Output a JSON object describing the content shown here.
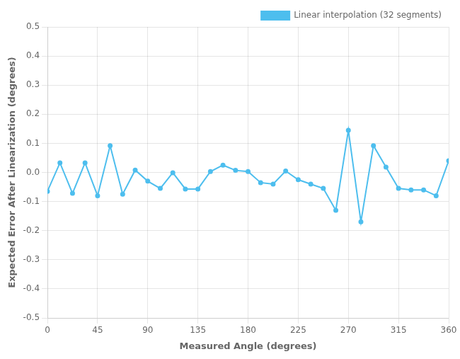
{
  "chart_data": {
    "type": "line",
    "x_label": "Measured Angle (degrees)",
    "y_label": "Expected Error After Linearization (degrees)",
    "x": [
      0,
      11.25,
      22.5,
      33.75,
      45,
      56.25,
      67.5,
      78.75,
      90,
      101.25,
      112.5,
      123.75,
      135,
      146.25,
      157.5,
      168.75,
      180,
      191.25,
      202.5,
      213.75,
      225,
      236.25,
      247.5,
      258.75,
      270,
      281.25,
      292.5,
      303.75,
      315,
      326.25,
      337.5,
      348.75,
      360
    ],
    "series": [
      {
        "name": "Linear interpolation (32 segments)",
        "color": "#4DBEEE",
        "marker": "point",
        "line_style": "solid",
        "values": [
          -0.065,
          0.033,
          -0.072,
          0.033,
          -0.08,
          0.092,
          -0.075,
          0.008,
          -0.03,
          -0.055,
          -0.001,
          -0.057,
          -0.057,
          0.003,
          0.025,
          0.007,
          0.003,
          -0.035,
          -0.04,
          0.005,
          -0.025,
          -0.04,
          -0.055,
          -0.13,
          0.145,
          -0.17,
          0.092,
          0.018,
          -0.055,
          -0.06,
          -0.06,
          -0.08,
          0.04
        ]
      }
    ],
    "xlim": [
      0,
      360
    ],
    "ylim": [
      -0.5,
      0.5
    ],
    "xticks": [
      0,
      45,
      90,
      135,
      180,
      225,
      270,
      315,
      360
    ],
    "yticks": [
      -0.5,
      -0.4,
      -0.3,
      -0.2,
      -0.1,
      {
        "value": 0,
        "label": "0.0"
      },
      0.1,
      0.2,
      0.3,
      0.4,
      0.5
    ],
    "grid": true,
    "legend": "upper right"
  }
}
